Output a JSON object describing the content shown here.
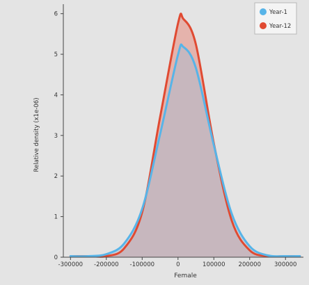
{
  "chart_data": {
    "type": "area",
    "title": "",
    "xlabel": "Female",
    "ylabel": "Relative density (x1e-06)",
    "xlim": [
      -320000,
      350000
    ],
    "ylim": [
      0,
      6.2
    ],
    "x_ticks": [
      -300000,
      -200000,
      -100000,
      0,
      100000,
      200000,
      300000
    ],
    "x_tick_labels": [
      "-300000",
      "-200000",
      "-100000",
      "0",
      "100000",
      "200000",
      "300000"
    ],
    "y_ticks": [
      0,
      1,
      2,
      3,
      4,
      5,
      6
    ],
    "y_tick_labels": [
      "0",
      "1",
      "2",
      "3",
      "4",
      "5",
      "6"
    ],
    "grid": false,
    "legend_position": "top-right",
    "series": [
      {
        "name": "Year-12",
        "color": "#e04a32",
        "fill": "rgba(230,120,105,0.45)",
        "x": [
          -300000,
          -250000,
          -200000,
          -150000,
          -100000,
          -50000,
          0,
          15000,
          50000,
          100000,
          150000,
          200000,
          250000,
          300000,
          340000
        ],
        "y": [
          0.0,
          0.002,
          0.026,
          0.22,
          1.11,
          3.45,
          5.76,
          5.87,
          5.24,
          2.8,
          0.9,
          0.17,
          0.02,
          0.001,
          0.0
        ]
      },
      {
        "name": "Year-1",
        "color": "#57b4e8",
        "fill": "rgba(175,185,205,0.55)",
        "x": [
          -300000,
          -250000,
          -200000,
          -150000,
          -100000,
          -50000,
          0,
          15000,
          50000,
          100000,
          150000,
          200000,
          250000,
          300000,
          340000
        ],
        "y": [
          0.002,
          0.012,
          0.075,
          0.34,
          1.19,
          3.03,
          4.99,
          5.18,
          4.66,
          2.76,
          1.07,
          0.27,
          0.045,
          0.005,
          0.001
        ]
      }
    ],
    "legend": [
      "Year-1",
      "Year-12"
    ]
  }
}
